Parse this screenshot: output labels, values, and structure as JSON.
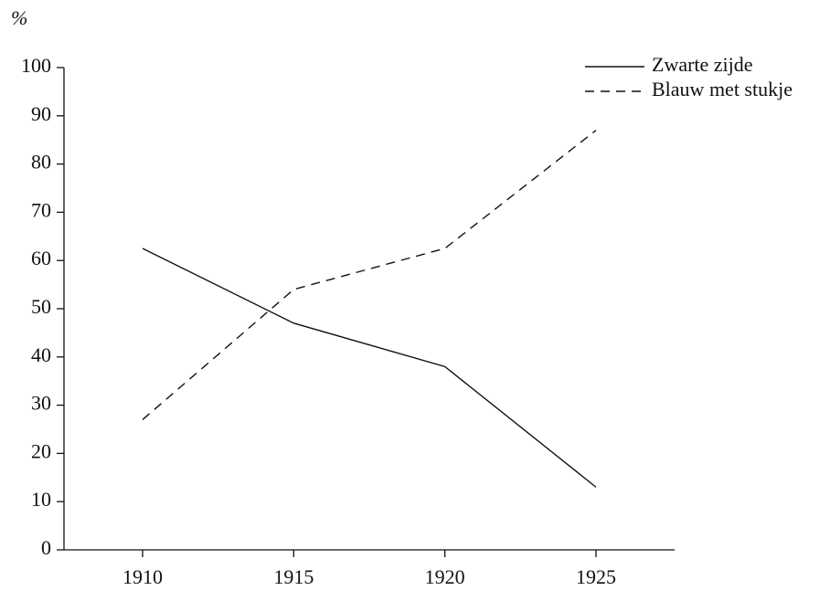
{
  "chart_data": {
    "type": "line",
    "y_label": "%",
    "x": [
      1910,
      1915,
      1920,
      1925
    ],
    "xlim": [
      1907.4,
      1927.6
    ],
    "xticks": [
      1910,
      1915,
      1920,
      1925
    ],
    "ylim": [
      0,
      100
    ],
    "yticks": [
      0,
      10,
      20,
      30,
      40,
      50,
      60,
      70,
      80,
      90,
      100
    ],
    "legend": "upper right",
    "series": [
      {
        "name": "Zwarte zijde",
        "color": "#111111",
        "dash": "solid",
        "values": [
          62.5,
          47,
          38,
          13
        ]
      },
      {
        "name": "Blauw met stukje",
        "color": "#111111",
        "dash": "dashed",
        "values": [
          27,
          54,
          62.5,
          87
        ]
      }
    ]
  }
}
